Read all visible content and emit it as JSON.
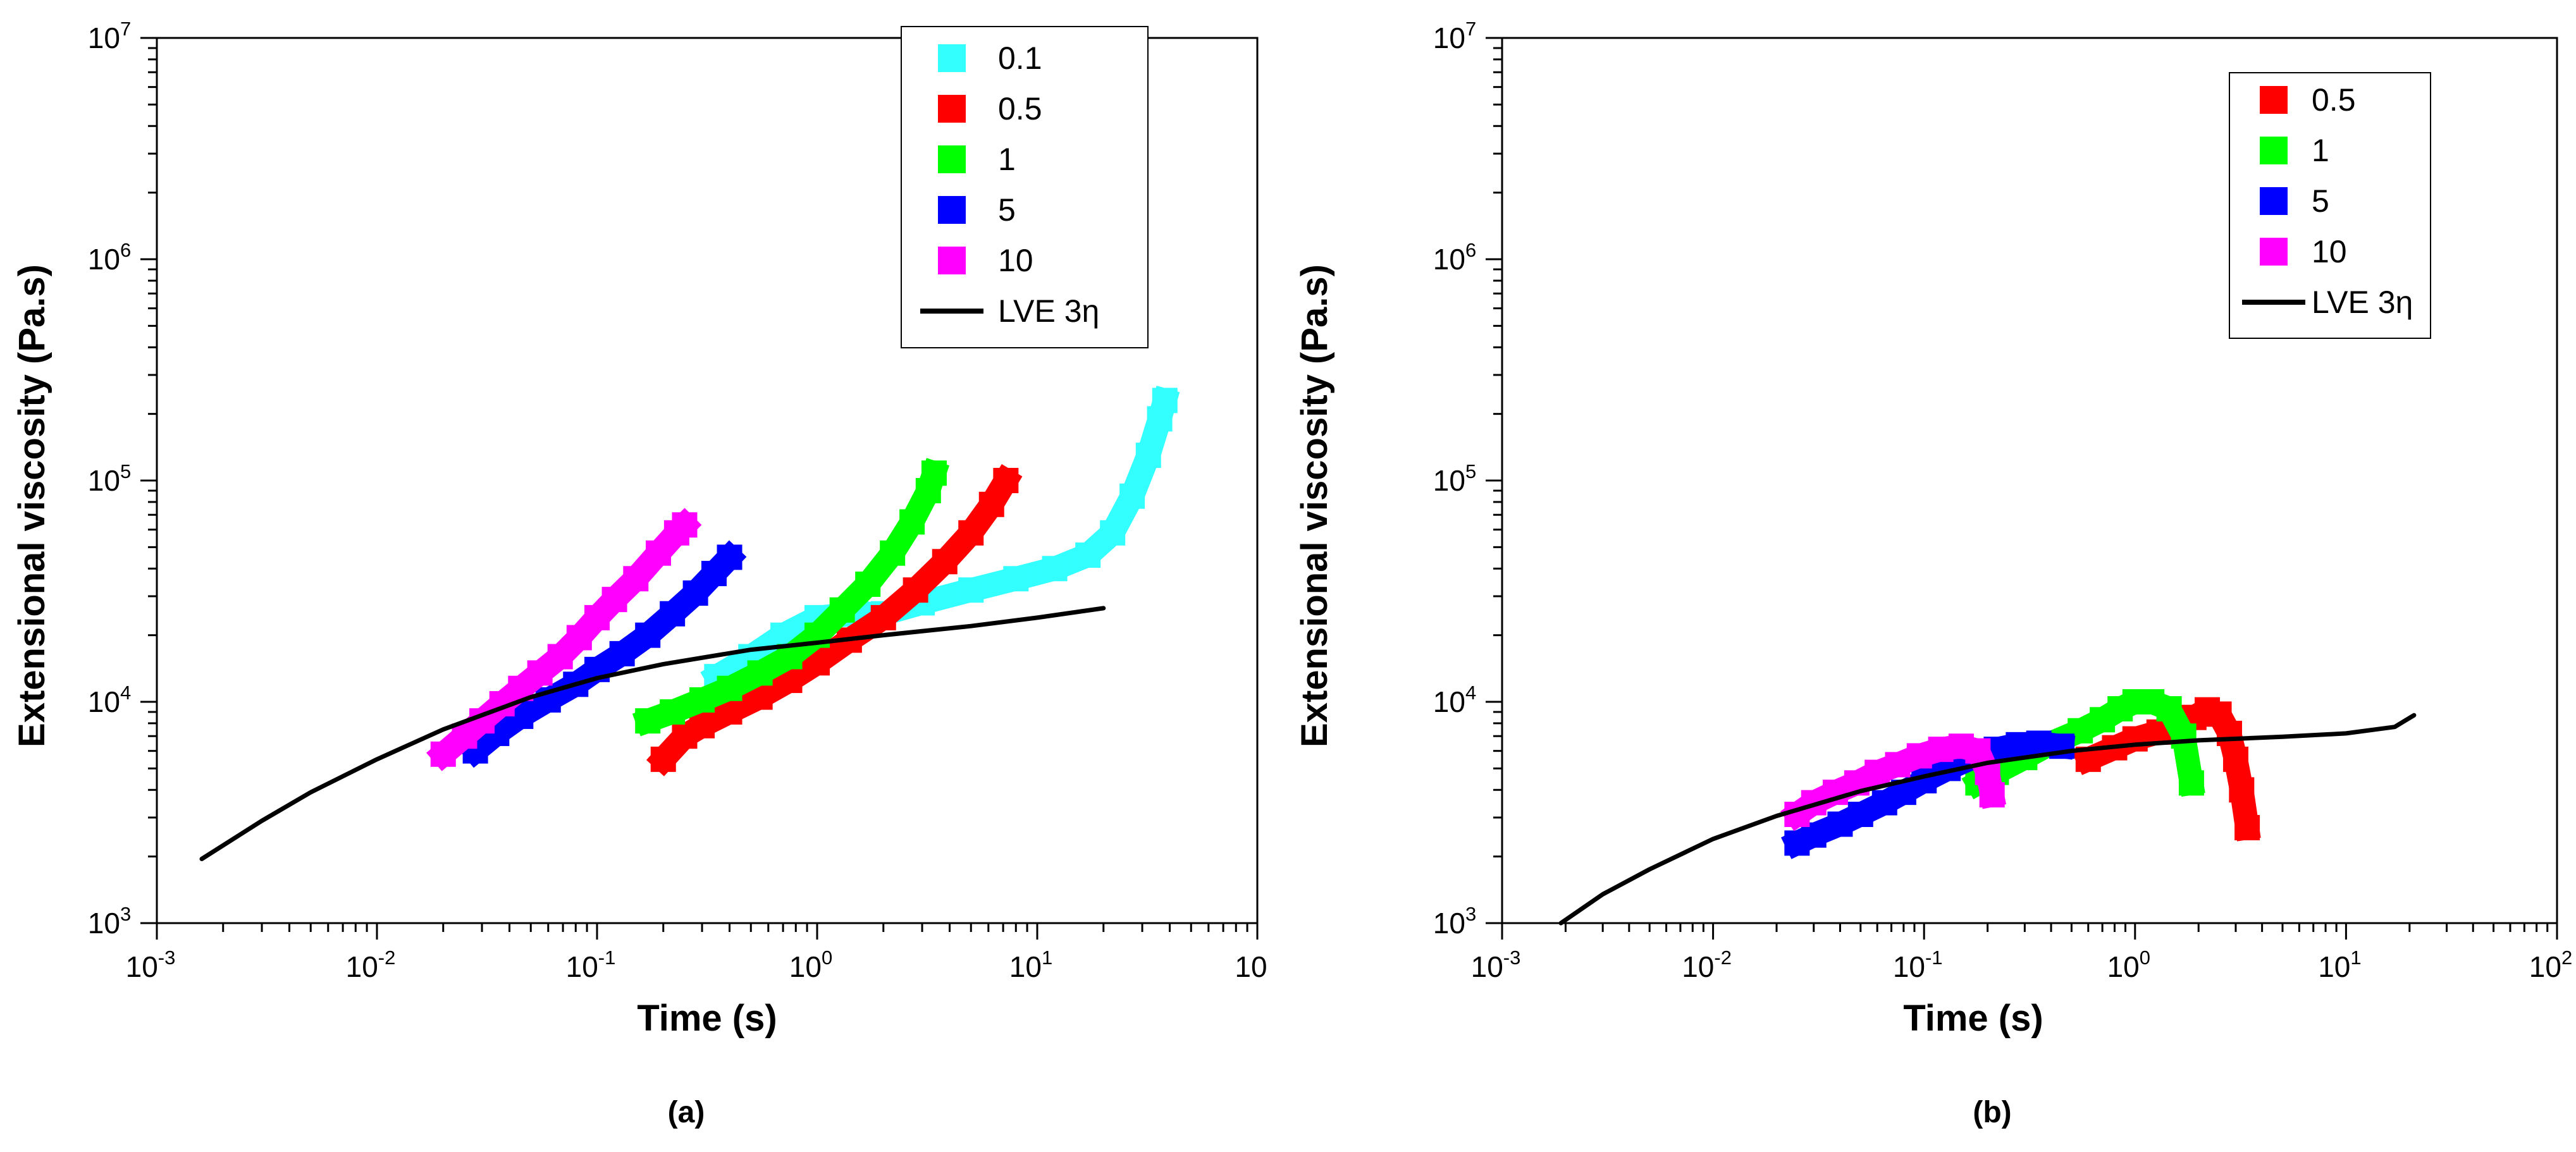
{
  "colors": {
    "0.1": "#33ffff",
    "0.5": "#ff0000",
    "1": "#00ff00",
    "5": "#0000ff",
    "10": "#ff00ff",
    "lve": "#000000"
  },
  "chart_data": [
    {
      "type": "scatter",
      "panel_label": "(a)",
      "xlabel": "Time (s)",
      "ylabel": "Extensional viscosity (Pa.s)",
      "xscale": "log",
      "yscale": "log",
      "xlim": [
        0.001,
        100
      ],
      "ylim": [
        1000,
        10000000
      ],
      "x_tick_labels": [
        {
          "base": "10",
          "exp": "-3"
        },
        {
          "base": "10",
          "exp": "-2"
        },
        {
          "base": "10",
          "exp": "-1"
        },
        {
          "base": "10",
          "exp": "0"
        },
        {
          "base": "10",
          "exp": "1"
        },
        {
          "base": "10",
          "exp": ""
        }
      ],
      "y_tick_labels": [
        {
          "base": "10",
          "exp": "3"
        },
        {
          "base": "10",
          "exp": "4"
        },
        {
          "base": "10",
          "exp": "5"
        },
        {
          "base": "10",
          "exp": "6"
        },
        {
          "base": "10",
          "exp": "7"
        }
      ],
      "legend_position": "top-right",
      "legend": [
        {
          "label": "0.1",
          "key": "0.1",
          "kind": "marker"
        },
        {
          "label": "0.5",
          "key": "0.5",
          "kind": "marker"
        },
        {
          "label": "1",
          "key": "1",
          "kind": "marker"
        },
        {
          "label": "5",
          "key": "5",
          "kind": "marker"
        },
        {
          "label": "10",
          "key": "10",
          "kind": "marker"
        },
        {
          "label": "LVE 3η",
          "key": "lve",
          "kind": "line"
        }
      ],
      "series": [
        {
          "name": "0.1",
          "key": "0.1",
          "x": [
            0.35,
            0.5,
            0.7,
            1.0,
            1.5,
            2.0,
            3.0,
            5.0,
            8.0,
            12.0,
            17.0,
            22.0,
            27.0,
            32.0,
            36.0,
            38.0
          ],
          "y": [
            13000,
            16000,
            20000,
            24000,
            25000,
            25000,
            28000,
            32000,
            36000,
            40000,
            46000,
            58000,
            85000,
            130000,
            190000,
            230000
          ]
        },
        {
          "name": "0.5",
          "key": "0.5",
          "x": [
            0.2,
            0.25,
            0.3,
            0.4,
            0.55,
            0.75,
            1.0,
            1.4,
            2.0,
            2.8,
            3.8,
            5.0,
            6.2,
            7.2
          ],
          "y": [
            5500,
            7000,
            7800,
            9000,
            10500,
            12500,
            15000,
            19000,
            24000,
            32000,
            43000,
            58000,
            78000,
            100000
          ]
        },
        {
          "name": "1",
          "key": "1",
          "x": [
            0.17,
            0.22,
            0.3,
            0.4,
            0.55,
            0.75,
            1.0,
            1.3,
            1.7,
            2.2,
            2.7,
            3.2,
            3.4
          ],
          "y": [
            8200,
            9000,
            10200,
            11500,
            13500,
            16000,
            20000,
            26000,
            34000,
            47000,
            65000,
            90000,
            108000
          ]
        },
        {
          "name": "5",
          "key": "5",
          "x": [
            0.028,
            0.035,
            0.045,
            0.06,
            0.08,
            0.1,
            0.13,
            0.17,
            0.22,
            0.28,
            0.34,
            0.4
          ],
          "y": [
            6000,
            7200,
            8600,
            10200,
            12000,
            14000,
            16500,
            20000,
            25000,
            31000,
            38000,
            45000
          ]
        },
        {
          "name": "10",
          "key": "10",
          "x": [
            0.02,
            0.025,
            0.03,
            0.037,
            0.045,
            0.055,
            0.068,
            0.083,
            0.1,
            0.12,
            0.15,
            0.19,
            0.23,
            0.25
          ],
          "y": [
            5800,
            7000,
            8200,
            9800,
            11500,
            13500,
            16000,
            19500,
            24000,
            29000,
            36000,
            47000,
            58000,
            63000
          ]
        },
        {
          "name": "LVE 3η",
          "key": "lve",
          "x": [
            0.0016,
            0.003,
            0.005,
            0.01,
            0.02,
            0.05,
            0.1,
            0.2,
            0.5,
            1.0,
            2.0,
            5.0,
            10.0,
            20.0
          ],
          "y": [
            1950,
            2900,
            3900,
            5500,
            7500,
            10500,
            12800,
            14800,
            17200,
            18500,
            20000,
            22000,
            24000,
            26500
          ]
        }
      ]
    },
    {
      "type": "scatter",
      "panel_label": "(b)",
      "xlabel": "Time (s)",
      "ylabel": "Extensional viscosity (Pa.s)",
      "xscale": "log",
      "yscale": "log",
      "xlim": [
        0.001,
        100
      ],
      "ylim": [
        1000,
        10000000
      ],
      "x_tick_labels": [
        {
          "base": "10",
          "exp": "-3"
        },
        {
          "base": "10",
          "exp": "-2"
        },
        {
          "base": "10",
          "exp": "-1"
        },
        {
          "base": "10",
          "exp": "0"
        },
        {
          "base": "10",
          "exp": "1"
        },
        {
          "base": "10",
          "exp": "2"
        }
      ],
      "y_tick_labels": [
        {
          "base": "10",
          "exp": "3"
        },
        {
          "base": "10",
          "exp": "4"
        },
        {
          "base": "10",
          "exp": "5"
        },
        {
          "base": "10",
          "exp": "6"
        },
        {
          "base": "10",
          "exp": "7"
        }
      ],
      "legend_position": "top-right",
      "legend": [
        {
          "label": "0.5",
          "key": "0.5",
          "kind": "marker"
        },
        {
          "label": "1",
          "key": "1",
          "kind": "marker"
        },
        {
          "label": "5",
          "key": "5",
          "kind": "marker"
        },
        {
          "label": "10",
          "key": "10",
          "kind": "marker"
        },
        {
          "label": "LVE 3η",
          "key": "lve",
          "kind": "line"
        }
      ],
      "series": [
        {
          "name": "0.5",
          "key": "0.5",
          "x": [
            0.6,
            0.8,
            1.0,
            1.3,
            1.6,
            1.9,
            2.2,
            2.5,
            2.8,
            3.0,
            3.2,
            3.4
          ],
          "y": [
            5500,
            6200,
            6800,
            7300,
            7800,
            8500,
            9200,
            8800,
            7200,
            5500,
            4000,
            2700
          ]
        },
        {
          "name": "1",
          "key": "1",
          "x": [
            0.18,
            0.22,
            0.3,
            0.4,
            0.55,
            0.7,
            0.85,
            1.0,
            1.2,
            1.45,
            1.7,
            1.85
          ],
          "y": [
            4300,
            4800,
            5600,
            6500,
            7400,
            8300,
            9300,
            10000,
            10000,
            9300,
            7000,
            4300
          ]
        },
        {
          "name": "5",
          "key": "5",
          "x": [
            0.025,
            0.03,
            0.04,
            0.05,
            0.065,
            0.08,
            0.1,
            0.13,
            0.17,
            0.22,
            0.28,
            0.35,
            0.45
          ],
          "y": [
            2300,
            2500,
            2800,
            3100,
            3500,
            3900,
            4400,
            5000,
            5600,
            6100,
            6400,
            6500,
            6300
          ]
        },
        {
          "name": "10",
          "key": "10",
          "x": [
            0.025,
            0.03,
            0.038,
            0.048,
            0.06,
            0.075,
            0.095,
            0.12,
            0.15,
            0.18,
            0.2,
            0.21
          ],
          "y": [
            3100,
            3500,
            3900,
            4300,
            4800,
            5200,
            5700,
            6100,
            6300,
            6000,
            4800,
            3800
          ]
        },
        {
          "name": "LVE 3η",
          "key": "lve",
          "x": [
            0.0019,
            0.003,
            0.005,
            0.01,
            0.02,
            0.05,
            0.1,
            0.2,
            0.5,
            1.0,
            2.0,
            5.0,
            10.0,
            17.0,
            21.0
          ],
          "y": [
            1000,
            1350,
            1750,
            2400,
            3050,
            3950,
            4600,
            5300,
            6000,
            6400,
            6700,
            6950,
            7200,
            7700,
            8700
          ]
        }
      ]
    }
  ]
}
